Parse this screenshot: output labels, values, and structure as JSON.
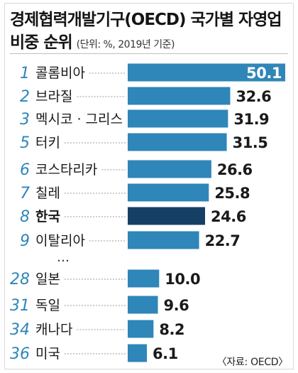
{
  "header": {
    "title_line1": "경제협력개발기구(OECD) 국가별 자영업",
    "title_line2": "비중 순위",
    "unit": "(단위: %, 2019년 기준)"
  },
  "source": "〈자료: OECD〉",
  "gap_marker": "…",
  "colors": {
    "bar": "#2f86b8",
    "bar_highlight": "#163f66",
    "rank_text": "#2f86b8",
    "leader": "#9a9a9a"
  },
  "chart_data": {
    "type": "bar",
    "orientation": "horizontal",
    "xlim": [
      0,
      50.1
    ],
    "highlight": "한국",
    "rows": [
      {
        "rank": "1",
        "country": "콜롬비아",
        "value": 50.1,
        "label": "50.1"
      },
      {
        "rank": "2",
        "country": "브라질",
        "value": 32.6,
        "label": "32.6"
      },
      {
        "rank": "3",
        "country": "멕시코 · 그리스",
        "value": 31.9,
        "label": "31.9"
      },
      {
        "rank": "5",
        "country": "터키",
        "value": 31.5,
        "label": "31.5"
      },
      {
        "rank": "6",
        "country": "코스타리카",
        "value": 26.6,
        "label": "26.6"
      },
      {
        "rank": "7",
        "country": "칠레",
        "value": 25.8,
        "label": "25.8"
      },
      {
        "rank": "8",
        "country": "한국",
        "value": 24.6,
        "label": "24.6"
      },
      {
        "rank": "9",
        "country": "이탈리아",
        "value": 22.7,
        "label": "22.7"
      },
      {
        "rank": "28",
        "country": "일본",
        "value": 10.0,
        "label": "10.0"
      },
      {
        "rank": "31",
        "country": "독일",
        "value": 9.6,
        "label": "9.6"
      },
      {
        "rank": "34",
        "country": "캐나다",
        "value": 8.2,
        "label": "8.2"
      },
      {
        "rank": "36",
        "country": "미국",
        "value": 6.1,
        "label": "6.1"
      }
    ]
  }
}
